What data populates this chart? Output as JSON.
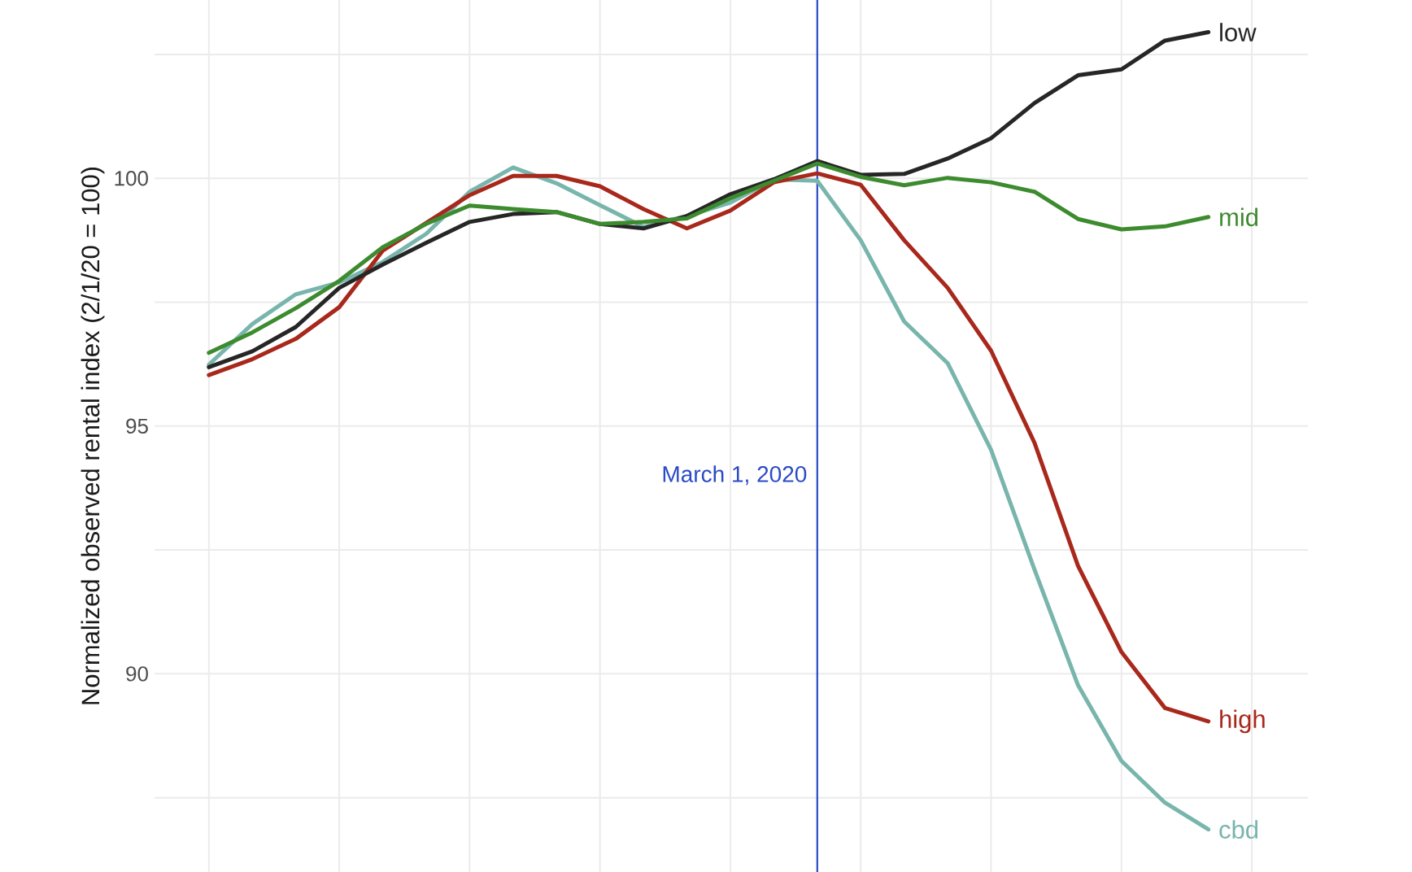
{
  "chart_data": {
    "type": "line",
    "ylabel": "Normalized observed rental index (2/1/20 = 100)",
    "categories": [
      null,
      null,
      null,
      null,
      null,
      null,
      null,
      null,
      null,
      null,
      null,
      null,
      null,
      null,
      null,
      null,
      null,
      null,
      null,
      null,
      null,
      null,
      null,
      null
    ],
    "ylim": [
      86,
      103.6
    ],
    "yticks": [
      {
        "value": 87.5,
        "label": null
      },
      90,
      {
        "value": 92.5,
        "label": null
      },
      95,
      {
        "value": 97.5,
        "label": null
      },
      100,
      {
        "value": 102.5,
        "label": null
      }
    ],
    "tick_labels": "y",
    "grid": true,
    "legend": false,
    "annotations": [
      "March 1, 2020"
    ],
    "series": [
      {
        "name": "cbd",
        "color": "#78b5ad",
        "values": [
          96.24,
          97.06,
          97.66,
          97.9,
          98.31,
          98.88,
          99.73,
          100.22,
          99.9,
          99.46,
          99.02,
          99.24,
          99.51,
          99.98,
          99.95,
          98.75,
          97.11,
          96.27,
          94.52,
          92.1,
          89.77,
          88.24,
          87.4,
          86.86
        ]
      },
      {
        "name": "high",
        "color": "#a8281c",
        "values": [
          96.03,
          96.35,
          96.76,
          97.4,
          98.54,
          99.1,
          99.66,
          100.05,
          100.05,
          99.84,
          99.38,
          98.99,
          99.35,
          99.92,
          100.1,
          99.87,
          98.75,
          97.79,
          96.52,
          94.66,
          92.18,
          90.44,
          89.31,
          89.04
        ]
      },
      {
        "name": "low",
        "color": "#262626",
        "values": [
          96.19,
          96.51,
          97.0,
          97.79,
          98.26,
          98.7,
          99.12,
          99.28,
          99.32,
          99.08,
          98.99,
          99.24,
          99.68,
          99.98,
          100.35,
          100.07,
          100.09,
          100.4,
          100.81,
          101.52,
          102.08,
          102.2,
          102.78,
          102.95
        ]
      },
      {
        "name": "mid",
        "color": "#3d8b2f",
        "values": [
          96.48,
          96.89,
          97.38,
          97.93,
          98.61,
          99.08,
          99.45,
          99.38,
          99.32,
          99.08,
          99.12,
          99.19,
          99.6,
          99.95,
          100.3,
          100.03,
          99.86,
          100.01,
          99.92,
          99.73,
          99.18,
          98.97,
          99.03,
          99.22
        ]
      }
    ]
  }
}
